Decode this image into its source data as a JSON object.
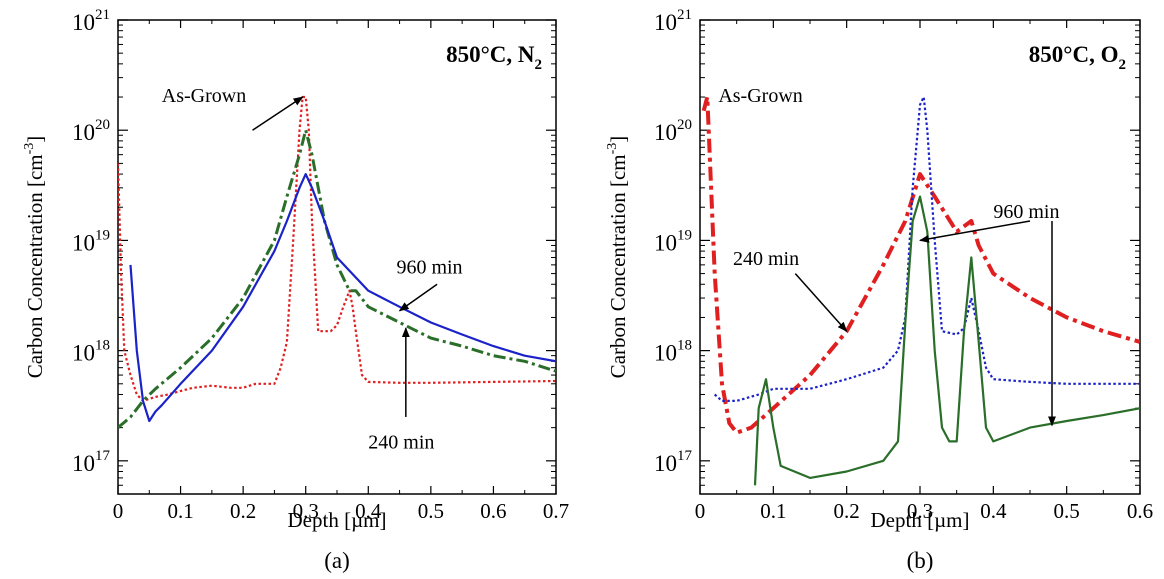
{
  "chart_data": [
    {
      "type": "line",
      "panel_label": "(a)",
      "title": "850°C, N",
      "title_sub": "2",
      "xlabel": "Depth [µm]",
      "ylabel": "Carbon Concentration [cm",
      "ylabel_sup": "-3",
      "ylabel_end": "]",
      "xlim": [
        0,
        0.7
      ],
      "ylim": [
        5e+16,
        1e+21
      ],
      "yscale": "log",
      "x_ticks": [
        "0",
        "0.1",
        "0.2",
        "0.3",
        "0.4",
        "0.5",
        "0.6",
        "0.7"
      ],
      "y_ticks": [
        {
          "base": "10",
          "exp": "17"
        },
        {
          "base": "10",
          "exp": "18"
        },
        {
          "base": "10",
          "exp": "19"
        },
        {
          "base": "10",
          "exp": "20"
        },
        {
          "base": "10",
          "exp": "21"
        }
      ],
      "series": [
        {
          "color": "#e02020",
          "style": "dotted",
          "x": [
            0.0,
            0.005,
            0.01,
            0.02,
            0.03,
            0.04,
            0.06,
            0.08,
            0.1,
            0.12,
            0.15,
            0.18,
            0.2,
            0.22,
            0.25,
            0.26,
            0.27,
            0.28,
            0.29,
            0.295,
            0.3,
            0.305,
            0.31,
            0.32,
            0.33,
            0.34,
            0.35,
            0.36,
            0.37,
            0.375,
            0.38,
            0.39,
            0.4,
            0.45,
            0.5,
            0.6,
            0.7
          ],
          "y": [
            5e+19,
            5e+18,
            1e+18,
            6e+17,
            4e+17,
            3.5e+17,
            3.8e+17,
            4e+17,
            4.3e+17,
            4.6e+17,
            4.8e+17,
            4.6e+17,
            4.6e+17,
            5e+17,
            5e+17,
            7e+17,
            1.2e+18,
            1e+19,
            1e+20,
            2e+20,
            2e+20,
            1e+20,
            1.5e+19,
            1.5e+18,
            1.5e+18,
            1.5e+18,
            1.7e+18,
            2.5e+18,
            3.5e+18,
            2.5e+18,
            1.5e+18,
            6e+17,
            5.2e+17,
            5.1e+17,
            5.1e+17,
            5.2e+17,
            5.3e+17
          ]
        },
        {
          "color": "#2a6e2a",
          "style": "dashdot",
          "x": [
            0.0,
            0.02,
            0.04,
            0.06,
            0.1,
            0.15,
            0.2,
            0.25,
            0.27,
            0.29,
            0.3,
            0.31,
            0.33,
            0.35,
            0.37,
            0.38,
            0.4,
            0.45,
            0.5,
            0.55,
            0.6,
            0.65,
            0.7
          ],
          "y": [
            2e+17,
            2.5e+17,
            3.5e+17,
            4.5e+17,
            7e+17,
            1.3e+18,
            3e+18,
            1e+19,
            2.5e+19,
            6e+19,
            1e+20,
            6e+19,
            1.5e+19,
            6e+18,
            3.5e+18,
            3.5e+18,
            2.5e+18,
            1.8e+18,
            1.3e+18,
            1.1e+18,
            9e+17,
            8e+17,
            6.5e+17
          ]
        },
        {
          "color": "#1a22c8",
          "style": "solid",
          "x": [
            0.02,
            0.03,
            0.04,
            0.05,
            0.06,
            0.07,
            0.1,
            0.15,
            0.2,
            0.25,
            0.27,
            0.29,
            0.3,
            0.31,
            0.33,
            0.35,
            0.4,
            0.45,
            0.5,
            0.55,
            0.6,
            0.65,
            0.7
          ],
          "y": [
            6e+18,
            1e+18,
            3.5e+17,
            2.3e+17,
            2.8e+17,
            3.2e+17,
            5e+17,
            1e+18,
            2.5e+18,
            8e+18,
            1.5e+19,
            3e+19,
            4e+19,
            3e+19,
            1.5e+19,
            7e+18,
            3.5e+18,
            2.5e+18,
            1.8e+18,
            1.4e+18,
            1.1e+18,
            9e+17,
            8e+17
          ]
        }
      ],
      "annotations": [
        {
          "text": "As-Grown",
          "x": 0.07,
          "y": 1.8e+20,
          "arrow_to": [
            0.295,
            2e+20
          ],
          "arrow_from": [
            0.215,
            1e+20
          ]
        },
        {
          "text": "960 min",
          "x": 0.445,
          "y": 5e+18,
          "arrow_to": [
            0.45,
            2.3e+18
          ],
          "arrow_from": [
            0.51,
            4e+18
          ]
        },
        {
          "text": "240 min",
          "x": 0.4,
          "y": 1.3e+17,
          "arrow_to": [
            0.46,
            1.6e+18
          ],
          "arrow_from": [
            0.46,
            2.5e+17
          ]
        }
      ]
    },
    {
      "type": "line",
      "panel_label": "(b)",
      "title": "850°C, O",
      "title_sub": "2",
      "xlabel": "Depth [µm]",
      "ylabel": "Carbon Concentration [cm",
      "ylabel_sup": "-3",
      "ylabel_end": "]",
      "xlim": [
        0,
        0.6
      ],
      "ylim": [
        5e+16,
        1e+21
      ],
      "yscale": "log",
      "x_ticks": [
        "0",
        "0.1",
        "0.2",
        "0.3",
        "0.4",
        "0.5",
        "0.6"
      ],
      "y_ticks": [
        {
          "base": "10",
          "exp": "17"
        },
        {
          "base": "10",
          "exp": "18"
        },
        {
          "base": "10",
          "exp": "19"
        },
        {
          "base": "10",
          "exp": "20"
        },
        {
          "base": "10",
          "exp": "21"
        }
      ],
      "series": [
        {
          "color": "#e02020",
          "style": "dashdot-thick",
          "x": [
            0.005,
            0.01,
            0.02,
            0.03,
            0.04,
            0.05,
            0.07,
            0.1,
            0.15,
            0.2,
            0.25,
            0.28,
            0.3,
            0.32,
            0.35,
            0.37,
            0.38,
            0.4,
            0.45,
            0.5,
            0.55,
            0.6
          ],
          "y": [
            1.5e+20,
            2e+20,
            5e+18,
            5e+17,
            2.2e+17,
            1.8e+17,
            2e+17,
            3e+17,
            6e+17,
            1.5e+18,
            6e+18,
            1.5e+19,
            4e+19,
            2.5e+19,
            1.2e+19,
            1.5e+19,
            9e+18,
            5e+18,
            3e+18,
            2e+18,
            1.5e+18,
            1.2e+18
          ]
        },
        {
          "color": "#1a22c8",
          "style": "dotted",
          "x": [
            0.02,
            0.03,
            0.05,
            0.08,
            0.1,
            0.15,
            0.2,
            0.25,
            0.27,
            0.28,
            0.29,
            0.3,
            0.305,
            0.31,
            0.32,
            0.33,
            0.35,
            0.36,
            0.37,
            0.38,
            0.39,
            0.4,
            0.45,
            0.5,
            0.55,
            0.6
          ],
          "y": [
            4e+17,
            3.5e+17,
            3.5e+17,
            4e+17,
            4.5e+17,
            4.5e+17,
            5.5e+17,
            7e+17,
            1e+18,
            2e+18,
            3e+19,
            1.7e+20,
            2e+20,
            1e+20,
            1e+19,
            1.5e+18,
            1.4e+18,
            1.6e+18,
            3e+18,
            1.5e+18,
            7e+17,
            5.5e+17,
            5.2e+17,
            5e+17,
            5e+17,
            5e+17
          ]
        },
        {
          "color": "#2a6e2a",
          "style": "solid",
          "x": [
            0.075,
            0.08,
            0.09,
            0.1,
            0.11,
            0.15,
            0.2,
            0.25,
            0.27,
            0.28,
            0.29,
            0.3,
            0.31,
            0.32,
            0.33,
            0.34,
            0.35,
            0.36,
            0.37,
            0.38,
            0.39,
            0.4,
            0.45,
            0.5,
            0.55,
            0.6
          ],
          "y": [
            6e+16,
            3e+17,
            5.5e+17,
            2e+17,
            9e+16,
            7e+16,
            8e+16,
            1e+17,
            1.5e+17,
            1.8e+18,
            1.5e+19,
            2.5e+19,
            1.2e+19,
            1e+18,
            2e+17,
            1.5e+17,
            1.5e+17,
            1.5e+18,
            7e+18,
            1.2e+18,
            2e+17,
            1.5e+17,
            2e+17,
            2.3e+17,
            2.6e+17,
            3e+17
          ]
        }
      ],
      "annotations": [
        {
          "text": "As-Grown",
          "x": 0.025,
          "y": 1.8e+20
        },
        {
          "text": "240 min",
          "x": 0.045,
          "y": 6e+18,
          "arrow_to": [
            0.2,
            1.5e+18
          ],
          "arrow_from": [
            0.13,
            5e+18
          ]
        },
        {
          "text": "960 min",
          "x": 0.4,
          "y": 1.6e+19,
          "arrow_to": [
            0.3,
            1e+19
          ],
          "arrow_from": [
            0.45,
            1.5e+19
          ]
        },
        {
          "text": "",
          "arrow_to": [
            0.48,
            2.1e+17
          ],
          "arrow_from": [
            0.48,
            1.5e+19
          ]
        }
      ]
    }
  ]
}
